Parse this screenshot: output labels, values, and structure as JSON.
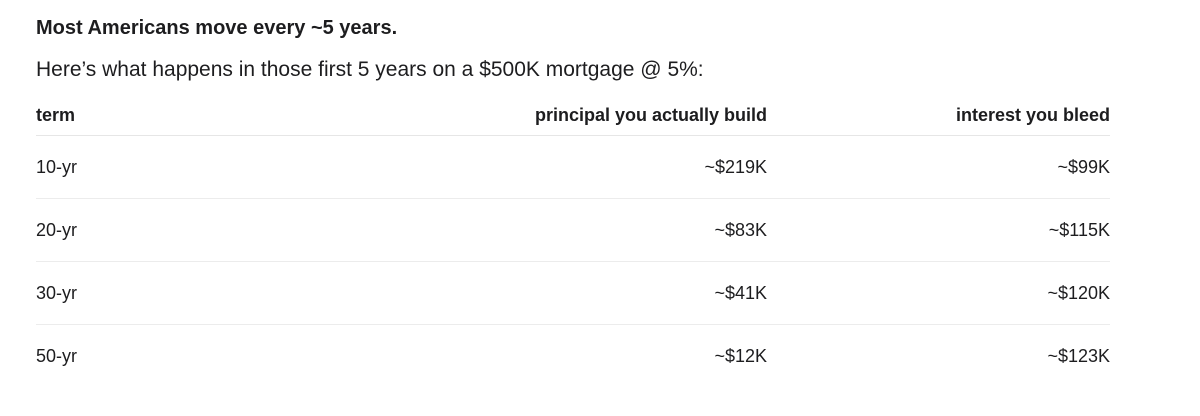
{
  "heading": "Most Americans move every ~5 years.",
  "subheading": "Here’s what happens in those first 5 years on a $500K mortgage @ 5%:",
  "table": {
    "headers": [
      "term",
      "principal you actually build",
      "interest you bleed"
    ],
    "rows": [
      {
        "term": "10-yr",
        "principal": "~$219K",
        "interest": "~$99K"
      },
      {
        "term": "20-yr",
        "principal": "~$83K",
        "interest": "~$115K"
      },
      {
        "term": "30-yr",
        "principal": "~$41K",
        "interest": "~$120K"
      },
      {
        "term": "50-yr",
        "principal": "~$12K",
        "interest": "~$123K"
      }
    ]
  }
}
